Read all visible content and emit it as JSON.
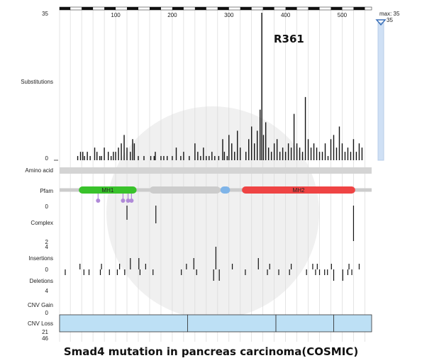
{
  "chart_data": {
    "type": "bar",
    "title": "Smad4 mutation in pancreas carcinoma(COSMIC)",
    "xlim": [
      1,
      552
    ],
    "x_ticks": [
      100,
      200,
      300,
      400,
      500
    ],
    "substitutions": {
      "label": "Substitutions",
      "ylim": [
        0,
        35
      ],
      "y_ticks": [
        "35",
        "0"
      ],
      "x": [
        33,
        38,
        42,
        45,
        50,
        55,
        63,
        67,
        72,
        75,
        80,
        87,
        92,
        96,
        100,
        105,
        110,
        115,
        120,
        126,
        130,
        133,
        140,
        150,
        162,
        168,
        170,
        180,
        185,
        191,
        200,
        207,
        215,
        220,
        230,
        240,
        245,
        250,
        255,
        260,
        265,
        270,
        275,
        282,
        289,
        292,
        297,
        300,
        305,
        310,
        315,
        320,
        330,
        335,
        340,
        345,
        350,
        355,
        358,
        361,
        365,
        370,
        375,
        380,
        385,
        390,
        395,
        400,
        405,
        410,
        415,
        420,
        425,
        430,
        435,
        440,
        445,
        450,
        455,
        460,
        465,
        470,
        475,
        480,
        485,
        490,
        495,
        500,
        505,
        510,
        515,
        520,
        525,
        530,
        535
      ],
      "values": [
        1,
        2,
        2,
        1,
        2,
        1,
        3,
        2,
        1,
        1,
        3,
        2,
        1,
        2,
        2,
        3,
        4,
        6,
        3,
        2,
        5,
        4,
        1,
        1,
        1,
        1,
        2,
        1,
        1,
        1,
        1,
        3,
        1,
        2,
        1,
        4,
        2,
        1,
        3,
        1,
        1,
        2,
        1,
        1,
        5,
        2,
        1,
        6,
        4,
        2,
        7,
        3,
        2,
        5,
        8,
        4,
        7,
        12,
        35,
        6,
        9,
        3,
        2,
        4,
        5,
        2,
        3,
        2,
        4,
        3,
        11,
        4,
        3,
        2,
        15,
        5,
        3,
        4,
        3,
        2,
        2,
        4,
        1,
        5,
        6,
        3,
        8,
        4,
        2,
        3,
        2,
        5,
        2,
        4,
        3
      ]
    },
    "amino_acid": {
      "label": "Amino acid"
    },
    "pfam": {
      "label": "Pfam",
      "domains": [
        {
          "name": "MH1",
          "start": 35,
          "end": 137,
          "color": "#39c22b"
        },
        {
          "name": "",
          "start": 160,
          "end": 285,
          "color": "#cccccc"
        },
        {
          "name": "",
          "start": 285,
          "end": 302,
          "color": "#7fb4e8"
        },
        {
          "name": "MH2",
          "start": 323,
          "end": 523,
          "color": "#ef4444"
        }
      ],
      "markers": [
        69,
        113,
        122,
        128
      ],
      "marker_color": "#b08ad8"
    },
    "complex": {
      "label": "Complex",
      "ylim": [
        0,
        2
      ],
      "y_ticks": [
        "0",
        "2"
      ],
      "x": [
        120,
        171,
        520
      ],
      "values": [
        0.8,
        1,
        2
      ]
    },
    "indels": {
      "insertions_label": "Insertions",
      "deletions_label": "Deletions",
      "ylim_insertions": [
        0,
        4
      ],
      "ylim_deletions": [
        0,
        4
      ],
      "y_ticks": [
        "4",
        "0",
        "4"
      ],
      "ins_x": [
        37,
        75,
        107,
        126,
        141,
        153,
        225,
        238,
        277,
        306,
        352,
        372,
        410,
        448,
        456,
        481,
        512,
        530
      ],
      "ins_v": [
        1,
        1,
        1,
        2,
        2,
        1,
        1,
        2,
        4,
        1,
        2,
        1,
        1,
        1,
        1,
        1,
        1,
        1
      ],
      "del_x": [
        11,
        44,
        53,
        73,
        89,
        103,
        116,
        143,
        166,
        216,
        243,
        273,
        283,
        329,
        368,
        388,
        407,
        437,
        453,
        460,
        469,
        474,
        485,
        501,
        510,
        517
      ],
      "del_v": [
        1,
        1,
        1,
        1,
        1,
        1,
        1,
        1,
        1,
        1,
        1,
        2,
        2,
        1,
        1,
        1,
        1,
        1,
        1,
        1,
        1,
        1,
        2,
        2,
        1,
        1
      ]
    },
    "cnv": {
      "gain_label": "CNV Gain",
      "loss_label": "CNV Loss",
      "gain_tick": "0",
      "loss_ticks": [
        "21",
        "46"
      ],
      "loss_blocks": [
        [
          1,
          227
        ],
        [
          227,
          383
        ],
        [
          383,
          485
        ],
        [
          485,
          552
        ]
      ],
      "fill": "#bde0f5"
    },
    "slider": {
      "max_label": "max: 35",
      "value": "35"
    },
    "annotation": {
      "text": "R361",
      "x": 361
    }
  }
}
